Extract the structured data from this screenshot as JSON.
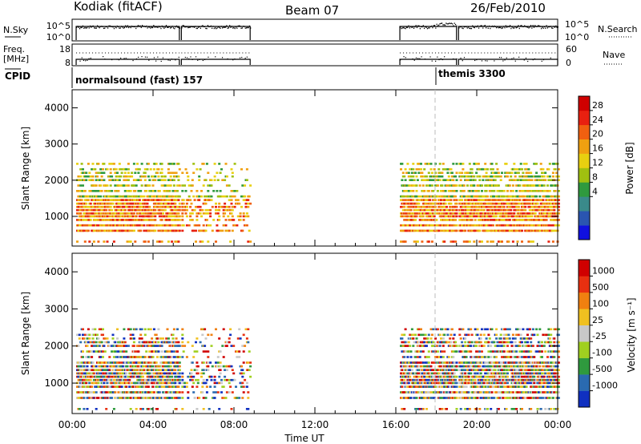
{
  "header": {
    "station": "Kodiak (fitACF)",
    "beam": "Beam 07",
    "date": "26/Feb/2010"
  },
  "nsky_panel": {
    "left_label": "N.Sky",
    "right_label": "N.Search",
    "left_ticks": [
      "10^5",
      "10^0"
    ],
    "right_ticks": [
      "10^5",
      "10^0"
    ]
  },
  "freq_panel": {
    "left_label_line1": "Freq.",
    "left_label_line2": "[MHz]",
    "right_label": "Nave",
    "left_ticks": [
      "18",
      "8"
    ],
    "right_ticks": [
      "60",
      "0"
    ]
  },
  "cpid_panel": {
    "label": "CPID",
    "segments": [
      {
        "start_hour": 0,
        "text": "normalsound (fast) 157"
      },
      {
        "start_hour": 18,
        "text": "themis 3300"
      }
    ]
  },
  "chart_data": [
    {
      "type": "heatmap",
      "name": "power",
      "ylabel": "Slant Range [km]",
      "xlabel": "",
      "xlim_hours": [
        0,
        24
      ],
      "ylim": [
        180,
        4500
      ],
      "yticks": [
        "4000",
        "3000",
        "2000",
        "1000"
      ],
      "colorbar": {
        "label": "Power [dB]",
        "ticks": [
          "28",
          "24",
          "20",
          "16",
          "12",
          "8",
          "4"
        ],
        "colors": [
          "#1010e0",
          "#2a55b0",
          "#3a8a8a",
          "#2f9a3e",
          "#a0c010",
          "#e8d010",
          "#f0a010",
          "#f06010",
          "#e82010",
          "#d00000"
        ]
      },
      "data_intervals_hours": [
        [
          0.2,
          5.3
        ],
        [
          5.4,
          8.8
        ],
        [
          16.2,
          19.0
        ],
        [
          19.1,
          24.0
        ]
      ],
      "range_gates_km": [
        300,
        600,
        750,
        900,
        1000,
        1080,
        1170,
        1260,
        1350,
        1450,
        1550,
        1700,
        1850,
        2000,
        2100,
        2200,
        2300,
        2450
      ]
    },
    {
      "type": "heatmap",
      "name": "velocity",
      "ylabel": "Slant Range [km]",
      "xlabel": "Time UT",
      "xlim_hours": [
        0,
        24
      ],
      "ylim": [
        180,
        4500
      ],
      "yticks": [
        "4000",
        "3000",
        "2000",
        "1000"
      ],
      "xticks": [
        "00:00",
        "04:00",
        "08:00",
        "12:00",
        "16:00",
        "20:00",
        "00:00"
      ],
      "colorbar": {
        "label": "Velocity [m s⁻¹]",
        "ticks": [
          "1000",
          "500",
          "100",
          "25",
          "-25",
          "-100",
          "-500",
          "-1000"
        ],
        "colors": [
          "#1030c0",
          "#2a6ab0",
          "#2f9a3e",
          "#a0d020",
          "#c8c8c8",
          "#f0c020",
          "#f08010",
          "#e83010",
          "#d00000"
        ]
      },
      "data_intervals_hours": [
        [
          0.2,
          5.3
        ],
        [
          5.4,
          8.8
        ],
        [
          16.2,
          19.0
        ],
        [
          19.1,
          24.0
        ]
      ],
      "range_gates_km": [
        300,
        600,
        750,
        900,
        1000,
        1080,
        1170,
        1260,
        1350,
        1450,
        1550,
        1700,
        1850,
        2000,
        2100,
        2200,
        2300,
        2450
      ]
    }
  ]
}
